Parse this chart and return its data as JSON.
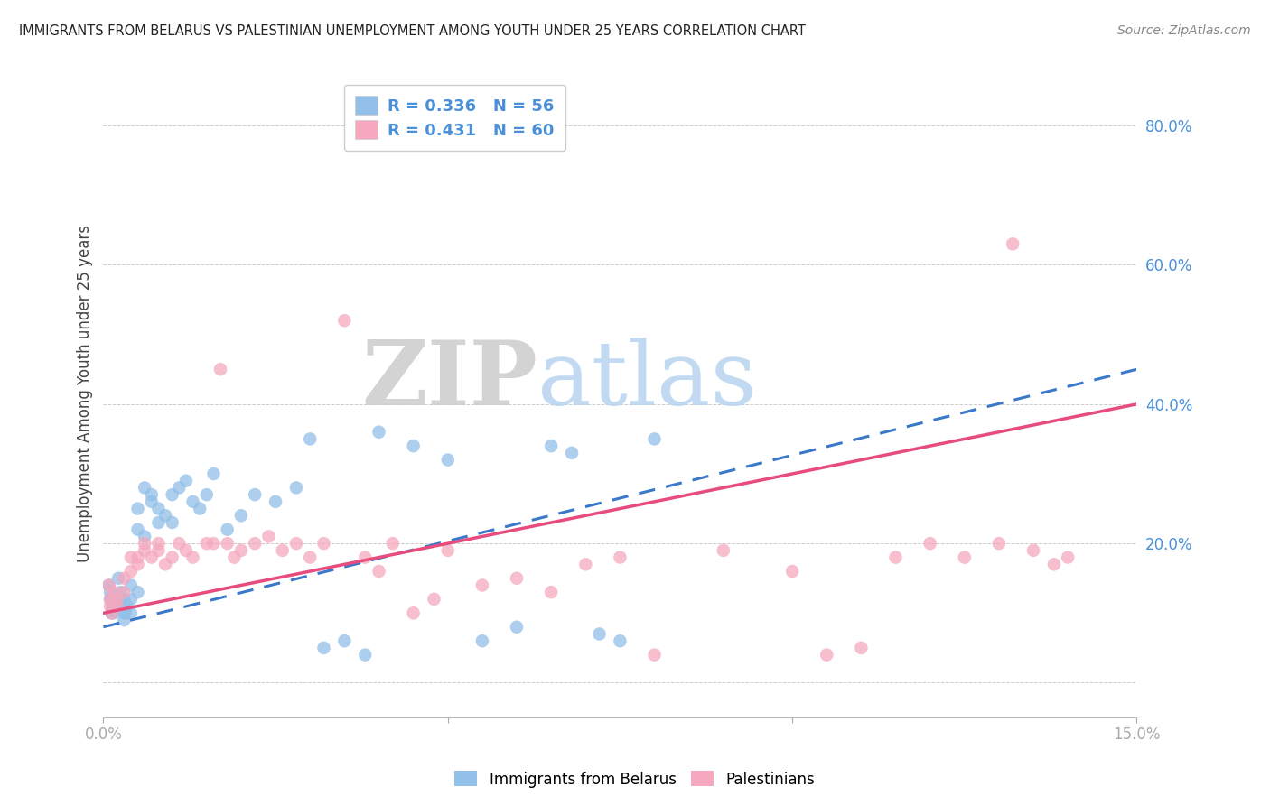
{
  "title": "IMMIGRANTS FROM BELARUS VS PALESTINIAN UNEMPLOYMENT AMONG YOUTH UNDER 25 YEARS CORRELATION CHART",
  "source": "Source: ZipAtlas.com",
  "ylabel": "Unemployment Among Youth under 25 years",
  "xlim": [
    0.0,
    0.15
  ],
  "ylim": [
    -0.05,
    0.88
  ],
  "legend1_label": "Immigrants from Belarus",
  "legend2_label": "Palestinians",
  "R1": "0.336",
  "N1": "56",
  "R2": "0.431",
  "N2": "60",
  "blue_color": "#92c0e8",
  "pink_color": "#f5a8be",
  "blue_line_color": "#3a78c9",
  "pink_line_color": "#e84c7d",
  "axis_label_color": "#4a90d9",
  "title_color": "#222222",
  "grid_color": "#cccccc",
  "background_color": "#ffffff",
  "blue_scatter_x": [
    0.0008,
    0.001,
    0.001,
    0.0012,
    0.0014,
    0.0015,
    0.002,
    0.002,
    0.0022,
    0.0025,
    0.003,
    0.003,
    0.003,
    0.003,
    0.0032,
    0.0035,
    0.004,
    0.004,
    0.004,
    0.005,
    0.005,
    0.005,
    0.006,
    0.006,
    0.007,
    0.007,
    0.008,
    0.008,
    0.009,
    0.01,
    0.01,
    0.011,
    0.012,
    0.013,
    0.014,
    0.015,
    0.016,
    0.018,
    0.02,
    0.022,
    0.025,
    0.028,
    0.03,
    0.032,
    0.035,
    0.038,
    0.04,
    0.045,
    0.05,
    0.055,
    0.06,
    0.065,
    0.068,
    0.072,
    0.075,
    0.08
  ],
  "blue_scatter_y": [
    0.14,
    0.13,
    0.12,
    0.1,
    0.11,
    0.1,
    0.12,
    0.11,
    0.15,
    0.13,
    0.11,
    0.1,
    0.09,
    0.12,
    0.1,
    0.11,
    0.14,
    0.12,
    0.1,
    0.13,
    0.25,
    0.22,
    0.21,
    0.28,
    0.26,
    0.27,
    0.23,
    0.25,
    0.24,
    0.23,
    0.27,
    0.28,
    0.29,
    0.26,
    0.25,
    0.27,
    0.3,
    0.22,
    0.24,
    0.27,
    0.26,
    0.28,
    0.35,
    0.05,
    0.06,
    0.04,
    0.36,
    0.34,
    0.32,
    0.06,
    0.08,
    0.34,
    0.33,
    0.07,
    0.06,
    0.35
  ],
  "pink_scatter_x": [
    0.0008,
    0.001,
    0.001,
    0.0012,
    0.0015,
    0.002,
    0.002,
    0.003,
    0.003,
    0.004,
    0.004,
    0.005,
    0.005,
    0.006,
    0.006,
    0.007,
    0.008,
    0.008,
    0.009,
    0.01,
    0.011,
    0.012,
    0.013,
    0.015,
    0.016,
    0.017,
    0.018,
    0.019,
    0.02,
    0.022,
    0.024,
    0.026,
    0.028,
    0.03,
    0.032,
    0.035,
    0.038,
    0.04,
    0.042,
    0.045,
    0.048,
    0.05,
    0.055,
    0.06,
    0.065,
    0.07,
    0.075,
    0.08,
    0.09,
    0.1,
    0.105,
    0.11,
    0.115,
    0.12,
    0.125,
    0.13,
    0.132,
    0.135,
    0.138,
    0.14
  ],
  "pink_scatter_y": [
    0.14,
    0.12,
    0.11,
    0.1,
    0.13,
    0.12,
    0.11,
    0.15,
    0.13,
    0.16,
    0.18,
    0.17,
    0.18,
    0.2,
    0.19,
    0.18,
    0.2,
    0.19,
    0.17,
    0.18,
    0.2,
    0.19,
    0.18,
    0.2,
    0.2,
    0.45,
    0.2,
    0.18,
    0.19,
    0.2,
    0.21,
    0.19,
    0.2,
    0.18,
    0.2,
    0.52,
    0.18,
    0.16,
    0.2,
    0.1,
    0.12,
    0.19,
    0.14,
    0.15,
    0.13,
    0.17,
    0.18,
    0.04,
    0.19,
    0.16,
    0.04,
    0.05,
    0.18,
    0.2,
    0.18,
    0.2,
    0.63,
    0.19,
    0.17,
    0.18
  ],
  "blue_trend_x0": 0.0,
  "blue_trend_y0": 0.08,
  "blue_trend_x1": 0.15,
  "blue_trend_y1": 0.45,
  "pink_trend_x0": 0.0,
  "pink_trend_y0": 0.1,
  "pink_trend_x1": 0.15,
  "pink_trend_y1": 0.4
}
